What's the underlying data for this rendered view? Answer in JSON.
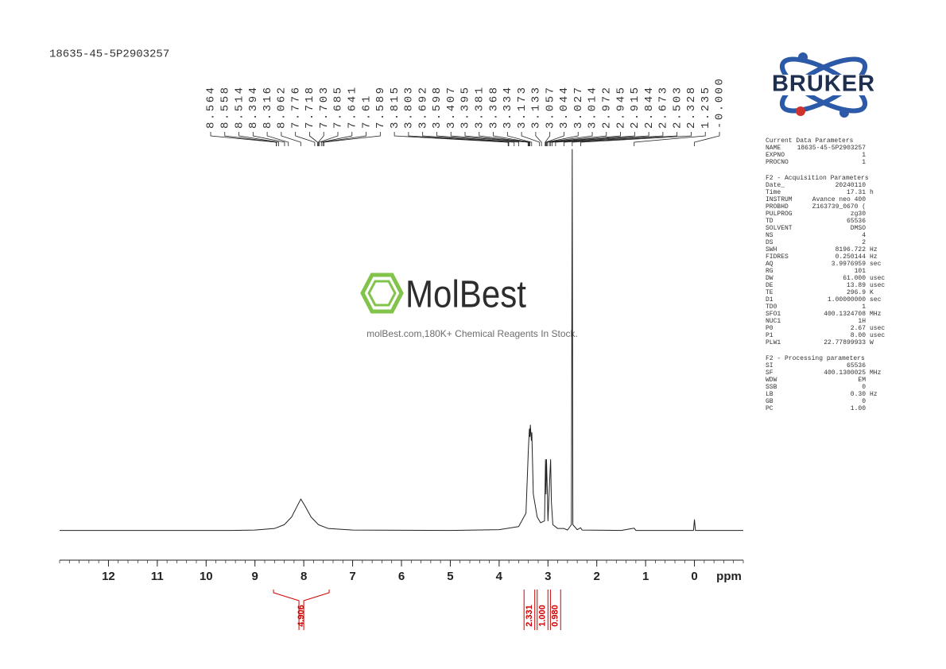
{
  "sample_name": "18635-45-5P2903257",
  "logo_text": "BRUKER",
  "watermark": {
    "brand": "MolBest",
    "tagline": "molBest.com,180K+ Chemical Reagents In Stock."
  },
  "parameters": [
    {
      "title": "Current Data Parameters",
      "rows": [
        [
          "NAME",
          "18635-45-5P2903257"
        ],
        [
          "EXPNO",
          "1"
        ],
        [
          "PROCNO",
          "1"
        ]
      ]
    },
    {
      "title": "F2 - Acquisition Parameters",
      "rows": [
        [
          "Date_",
          "20240110"
        ],
        [
          "Time",
          "17.31",
          "h"
        ],
        [
          "INSTRUM",
          "Avance neo 400"
        ],
        [
          "PROBHD",
          "Z163739_0670 ("
        ],
        [
          "PULPROG",
          "zg30"
        ],
        [
          "TD",
          "65536"
        ],
        [
          "SOLVENT",
          "DMSO"
        ],
        [
          "NS",
          "4"
        ],
        [
          "DS",
          "2"
        ],
        [
          "SWH",
          "8196.722",
          "Hz"
        ],
        [
          "FIDRES",
          "0.250144",
          "Hz"
        ],
        [
          "AQ",
          "3.9976959",
          "sec"
        ],
        [
          "RG",
          "101"
        ],
        [
          "DW",
          "61.000",
          "usec"
        ],
        [
          "DE",
          "13.89",
          "usec"
        ],
        [
          "TE",
          "296.9",
          "K"
        ],
        [
          "D1",
          "1.00000000",
          "sec"
        ],
        [
          "TD0",
          "1"
        ],
        [
          "SFO1",
          "400.1324708",
          "MHz"
        ],
        [
          "NUC1",
          "1H"
        ],
        [
          "P0",
          "2.67",
          "usec"
        ],
        [
          "P1",
          "8.00",
          "usec"
        ],
        [
          "PLW1",
          "22.77899933",
          "W"
        ]
      ]
    },
    {
      "title": "F2 - Processing parameters",
      "rows": [
        [
          "SI",
          "65536"
        ],
        [
          "SF",
          "400.1300025",
          "MHz"
        ],
        [
          "WDW",
          "EM"
        ],
        [
          "SSB",
          "0"
        ],
        [
          "LB",
          "0.30",
          "Hz"
        ],
        [
          "GB",
          "0"
        ],
        [
          "PC",
          "1.00"
        ]
      ]
    }
  ],
  "chart_data": {
    "type": "line",
    "color": "#222222",
    "x": [
      13,
      9.5,
      9.0,
      8.6,
      8.4,
      8.25,
      8.15,
      8.06,
      7.98,
      7.85,
      7.7,
      7.5,
      7.0,
      5.0,
      4.0,
      3.6,
      3.45,
      3.4,
      3.38,
      3.37,
      3.36,
      3.34,
      3.33,
      3.3,
      3.22,
      3.15,
      3.07,
      3.05,
      3.04,
      3.03,
      3.015,
      3.0,
      2.96,
      2.945,
      2.93,
      2.9,
      2.8,
      2.67,
      2.6,
      2.52,
      2.503,
      2.49,
      2.4,
      2.33,
      2.3,
      1.5,
      1.235,
      1.2,
      0.5,
      0.02,
      0.0,
      -0.02,
      -1
    ],
    "values": [
      0.5,
      0.5,
      0.6,
      1.0,
      2.0,
      4.0,
      6.5,
      8.7,
      7.0,
      4.0,
      2.0,
      1.0,
      0.6,
      0.5,
      0.7,
      1.5,
      5,
      22,
      27,
      25,
      28,
      24,
      26,
      10,
      4,
      2.5,
      3,
      19,
      10,
      19,
      12,
      3,
      15,
      19,
      8,
      2,
      1,
      1,
      0.6,
      2,
      100,
      2,
      0.7,
      1.2,
      0.6,
      0.5,
      1.1,
      0.5,
      0.5,
      0.5,
      3.3,
      0.5,
      0.5
    ],
    "xlim": [
      13,
      -1
    ],
    "ylim": [
      0,
      100
    ],
    "xticks": [
      12,
      11,
      10,
      9,
      8,
      7,
      6,
      5,
      4,
      3,
      2,
      1,
      0
    ],
    "xminorticks": [
      13,
      12.8,
      12.6,
      12.4,
      12.2,
      12,
      11.8,
      11.6,
      11.4,
      11.2,
      11,
      10.8,
      10.6,
      10.4,
      10.2,
      10,
      9.8,
      9.6,
      9.4,
      9.2,
      9,
      8.8,
      8.6,
      8.4,
      8.2,
      8,
      7.8,
      7.6,
      7.4,
      7.2,
      7,
      6.8,
      6.6,
      6.4,
      6.2,
      6,
      5.8,
      5.6,
      5.4,
      5.2,
      5,
      4.8,
      4.6,
      4.4,
      4.2,
      4,
      3.8,
      3.6,
      3.4,
      3.2,
      3,
      2.8,
      2.6,
      2.4,
      2.2,
      2,
      1.8,
      1.6,
      1.4,
      1.2,
      1,
      0.8,
      0.6,
      0.4,
      0.2,
      0,
      -0.2,
      -0.4,
      -0.6,
      -0.8,
      -1
    ],
    "xlabel": "ppm",
    "peaks": [
      8.564,
      8.558,
      8.514,
      8.394,
      8.316,
      8.062,
      7.776,
      7.718,
      7.703,
      7.685,
      7.641,
      7.61,
      7.589,
      3.815,
      3.803,
      3.692,
      3.598,
      3.407,
      3.395,
      3.381,
      3.368,
      3.334,
      3.173,
      3.133,
      3.057,
      3.044,
      3.027,
      3.014,
      2.972,
      2.945,
      2.915,
      2.844,
      2.673,
      2.503,
      2.328,
      1.235,
      {
        "value": 0,
        "label": "-0.000"
      }
    ],
    "integrals": {
      "color": "#cc0000",
      "ranges": [
        [
          8.62,
          7.48
        ],
        [
          3.49,
          3.27
        ],
        [
          3.22,
          3.0
        ],
        [
          2.95,
          2.74
        ]
      ],
      "values": [
        4.906,
        2.331,
        1,
        0.98
      ],
      "value_labels": [
        "4.906",
        "2.331",
        "1.000",
        "0.980"
      ]
    }
  }
}
